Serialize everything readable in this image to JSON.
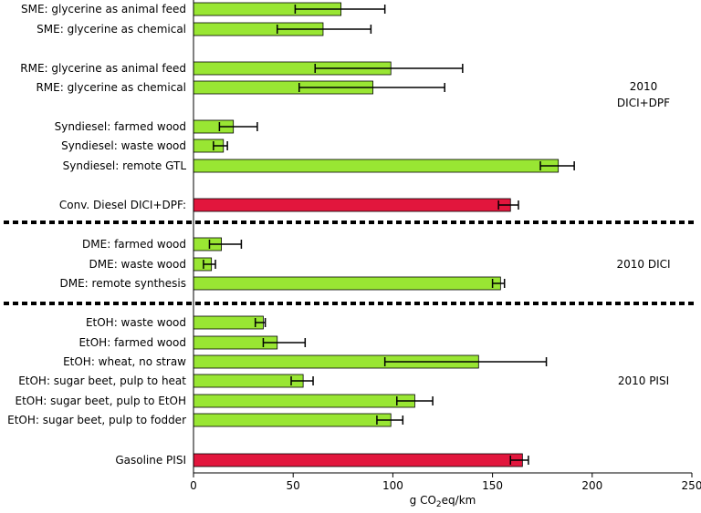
{
  "chart_data": {
    "type": "bar",
    "orientation": "horizontal",
    "xlabel": "g CO2eq/km",
    "xlim": [
      0,
      250
    ],
    "x_ticks": [
      0,
      50,
      100,
      150,
      200,
      250
    ],
    "grid": false,
    "colors": {
      "biofuel": "#99e633",
      "conventional": "#e2163d"
    },
    "groups": [
      {
        "label": "2010\nDICI+DPF",
        "bars": [
          {
            "category": "SME: glycerine as animal feed",
            "value": 74,
            "err_low": 51,
            "err_high": 96,
            "kind": "biofuel"
          },
          {
            "category": "SME: glycerine as chemical",
            "value": 65,
            "err_low": 42,
            "err_high": 89,
            "kind": "biofuel"
          },
          {
            "category": "RME: glycerine as animal feed",
            "value": 99,
            "err_low": 61,
            "err_high": 135,
            "kind": "biofuel"
          },
          {
            "category": "RME: glycerine as chemical",
            "value": 90,
            "err_low": 53,
            "err_high": 126,
            "kind": "biofuel"
          },
          {
            "category": "Syndiesel: farmed wood",
            "value": 20,
            "err_low": 13,
            "err_high": 32,
            "kind": "biofuel"
          },
          {
            "category": "Syndiesel: waste wood",
            "value": 15,
            "err_low": 10,
            "err_high": 17,
            "kind": "biofuel"
          },
          {
            "category": "Syndiesel: remote GTL",
            "value": 183,
            "err_low": 174,
            "err_high": 191,
            "kind": "biofuel"
          },
          {
            "category": "Conv. Diesel DICI+DPF:",
            "value": 159,
            "err_low": 153,
            "err_high": 163,
            "kind": "conventional"
          }
        ]
      },
      {
        "label": "2010 DICI",
        "bars": [
          {
            "category": "DME: farmed wood",
            "value": 14,
            "err_low": 8,
            "err_high": 24,
            "kind": "biofuel"
          },
          {
            "category": "DME: waste wood",
            "value": 9,
            "err_low": 5,
            "err_high": 11,
            "kind": "biofuel"
          },
          {
            "category": "DME: remote synthesis",
            "value": 154,
            "err_low": 150,
            "err_high": 156,
            "kind": "biofuel"
          }
        ]
      },
      {
        "label": "2010 PISI",
        "bars": [
          {
            "category": "EtOH: waste wood",
            "value": 35,
            "err_low": 31,
            "err_high": 36,
            "kind": "biofuel"
          },
          {
            "category": "EtOH: farmed wood",
            "value": 42,
            "err_low": 35,
            "err_high": 56,
            "kind": "biofuel"
          },
          {
            "category": "EtOH: wheat, no straw",
            "value": 143,
            "err_low": 96,
            "err_high": 177,
            "kind": "biofuel"
          },
          {
            "category": "EtOH: sugar beet, pulp to heat",
            "value": 55,
            "err_low": 49,
            "err_high": 60,
            "kind": "biofuel"
          },
          {
            "category": "EtOH: sugar beet, pulp to EtOH",
            "value": 111,
            "err_low": 102,
            "err_high": 120,
            "kind": "biofuel"
          },
          {
            "category": "EtOH: sugar beet, pulp to fodder",
            "value": 99,
            "err_low": 92,
            "err_high": 105,
            "kind": "biofuel"
          },
          {
            "category": "Gasoline PISI",
            "value": 165,
            "err_low": 159,
            "err_high": 168,
            "kind": "conventional"
          }
        ]
      }
    ]
  }
}
